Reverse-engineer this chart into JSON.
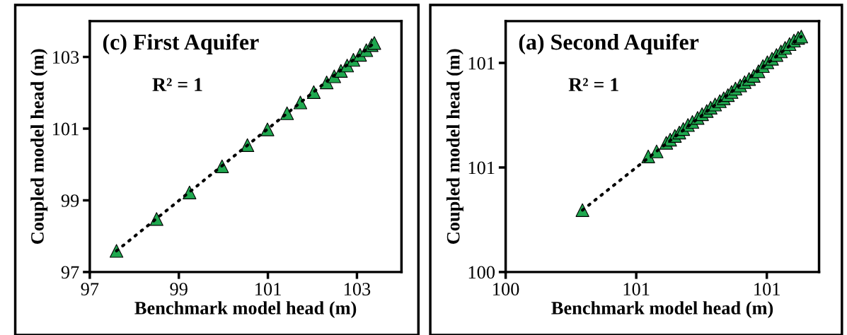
{
  "chart_data": [
    {
      "type": "scatter",
      "title": "(c) First Aquifer",
      "xlabel": "Benchmark model head (m)",
      "ylabel": "Coupled model head (m)",
      "annotations": [
        "R² = 1"
      ],
      "xlim": [
        97,
        104
      ],
      "ylim": [
        97,
        104
      ],
      "xticks": [
        97,
        99,
        101,
        103
      ],
      "yticks": [
        97,
        99,
        101,
        103
      ],
      "series": [
        {
          "marker": "triangle",
          "color": "#1fa84f",
          "x": [
            97.6,
            98.5,
            99.24,
            99.97,
            100.54,
            100.99,
            101.43,
            101.73,
            102.03,
            102.32,
            102.49,
            102.64,
            102.78,
            102.92,
            103.07,
            103.21,
            103.33,
            103.39
          ],
          "values": [
            97.59,
            98.48,
            99.22,
            99.95,
            100.54,
            100.98,
            101.43,
            101.73,
            102.02,
            102.29,
            102.46,
            102.61,
            102.76,
            102.92,
            103.06,
            103.19,
            103.33,
            103.39
          ]
        },
        {
          "type": "line",
          "color": "#000000",
          "line_style": "dotted",
          "x": [
            97.6,
            103.39
          ],
          "values": [
            97.59,
            103.39
          ]
        }
      ]
    },
    {
      "type": "scatter",
      "title": "(a) Second Aquifer",
      "xlabel": "Benchmark model head (m)",
      "ylabel": "Coupled model head (m)",
      "annotations": [
        "R² = 1"
      ],
      "xlim": [
        100,
        101.2
      ],
      "ylim": [
        100,
        101.2
      ],
      "xticks": [
        {
          "value": 100,
          "label": "100"
        },
        {
          "value": 100.5,
          "label": "101"
        },
        {
          "value": 101,
          "label": "101"
        }
      ],
      "yticks": [
        {
          "value": 100,
          "label": "100"
        },
        {
          "value": 100.5,
          "label": "101"
        },
        {
          "value": 101,
          "label": "101"
        }
      ],
      "series": [
        {
          "marker": "triangle",
          "color": "#1fa84f",
          "x": [
            100.294,
            100.546,
            100.578,
            100.615,
            100.63,
            100.648,
            100.665,
            100.68,
            100.698,
            100.715,
            100.735,
            100.752,
            100.77,
            100.785,
            100.802,
            100.82,
            100.835,
            100.851,
            100.865,
            100.88,
            100.898,
            100.915,
            100.932,
            100.95,
            100.968,
            100.985,
            101.002,
            101.02,
            101.037,
            101.054,
            101.07,
            101.087,
            101.104,
            101.12,
            101.132
          ],
          "values": [
            100.296,
            100.553,
            100.577,
            100.618,
            100.633,
            100.651,
            100.667,
            100.684,
            100.703,
            100.718,
            100.737,
            100.755,
            100.77,
            100.786,
            100.801,
            100.817,
            100.831,
            100.846,
            100.861,
            100.877,
            100.892,
            100.908,
            100.923,
            100.938,
            100.96,
            100.985,
            101.003,
            101.02,
            101.038,
            101.055,
            101.072,
            101.09,
            101.107,
            101.12,
            101.126
          ]
        },
        {
          "type": "line",
          "color": "#000000",
          "line_style": "dotted",
          "x": [
            100.294,
            101.132
          ],
          "values": [
            100.296,
            101.126
          ]
        }
      ]
    }
  ]
}
